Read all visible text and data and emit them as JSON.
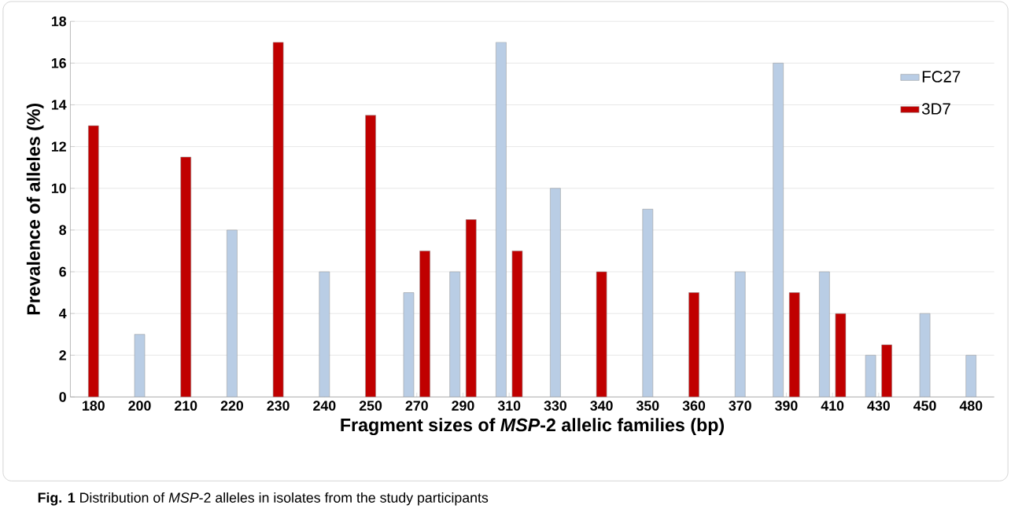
{
  "chart_data": {
    "type": "bar",
    "categories": [
      "180",
      "200",
      "210",
      "220",
      "230",
      "240",
      "250",
      "270",
      "290",
      "310",
      "330",
      "340",
      "350",
      "360",
      "370",
      "390",
      "410",
      "430",
      "450",
      "480"
    ],
    "series": [
      {
        "name": "FC27",
        "color": "#b9cde5",
        "values": [
          null,
          3,
          null,
          8,
          null,
          6,
          null,
          5,
          6,
          17,
          10,
          null,
          9,
          null,
          6,
          16,
          6,
          2,
          4,
          2
        ]
      },
      {
        "name": "3D7",
        "color": "#c00000",
        "values": [
          13,
          null,
          11.5,
          null,
          17,
          null,
          13.5,
          7,
          8.5,
          7,
          null,
          6,
          null,
          5,
          null,
          5,
          4,
          2.5,
          null,
          null
        ]
      }
    ],
    "xlabel": "Fragment sizes of *MSP*-2 allelic families (bp)",
    "ylabel": "Prevalence of alleles (%)",
    "ylim": [
      0,
      18
    ],
    "yticks": [
      0,
      2,
      4,
      6,
      8,
      10,
      12,
      14,
      16,
      18
    ],
    "grid": "y",
    "legend": "right",
    "annotations": [
      "**Fig. 1** Distribution of *MSP*-2 alleles in isolates from the study participants"
    ]
  }
}
